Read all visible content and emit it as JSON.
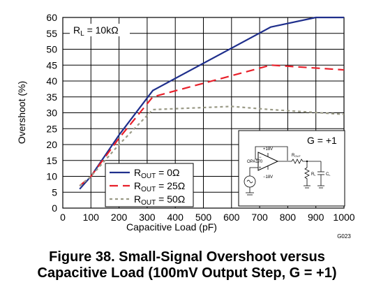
{
  "chart_data": {
    "type": "line",
    "xlabel": "Capacitive Load (pF)",
    "ylabel": "Overshoot (%)",
    "xlim": [
      0,
      1000
    ],
    "ylim": [
      0,
      60
    ],
    "xticks": [
      0,
      100,
      200,
      300,
      400,
      500,
      600,
      700,
      800,
      900,
      1000
    ],
    "yticks": [
      0,
      5,
      10,
      15,
      20,
      25,
      30,
      35,
      40,
      45,
      50,
      55,
      60
    ],
    "grid": true,
    "annotation": {
      "prefix": "R",
      "sub": "L",
      "rest": " = 10kΩ"
    },
    "legend_position": "lower-left",
    "series": [
      {
        "name": "R_OUT = 0Ω",
        "label_prefix": "R",
        "label_sub": "OUT",
        "label_rest": " = 0Ω",
        "color": "#1f2f8c",
        "dash": "solid",
        "x": [
          60,
          100,
          200,
          320,
          740,
          900,
          1000
        ],
        "y": [
          6,
          10,
          23,
          37,
          57,
          60,
          60
        ]
      },
      {
        "name": "R_OUT = 25Ω",
        "label_prefix": "R",
        "label_sub": "OUT",
        "label_rest": " = 25Ω",
        "color": "#e8202a",
        "dash": "long",
        "x": [
          60,
          100,
          200,
          320,
          740,
          1000
        ],
        "y": [
          7,
          10,
          22,
          35,
          45,
          43.5
        ]
      },
      {
        "name": "R_OUT = 50Ω",
        "label_prefix": "R",
        "label_sub": "OUT",
        "label_rest": " = 50Ω",
        "color": "#9a9a86",
        "dash": "short",
        "x": [
          60,
          100,
          200,
          320,
          600,
          740,
          1000
        ],
        "y": [
          7,
          10,
          20,
          31,
          32,
          31,
          29.5
        ]
      }
    ],
    "inset": {
      "gain_label": "G = +1",
      "opamp_label": "OPA170",
      "supply_pos": "+18V",
      "supply_neg": "−18V",
      "rout_label": "R",
      "rout_sub": "OUT",
      "rl_label": "R",
      "rl_sub": "L",
      "cl_label": "C",
      "cl_sub": "L"
    },
    "figure_code": "G023"
  },
  "caption": {
    "line1": "Figure 38.  Small-Signal Overshoot versus",
    "line2": "Capacitive Load (100mV Output Step, G = +1)"
  },
  "colors": {
    "grid": "#000000",
    "background": "#ffffff"
  }
}
